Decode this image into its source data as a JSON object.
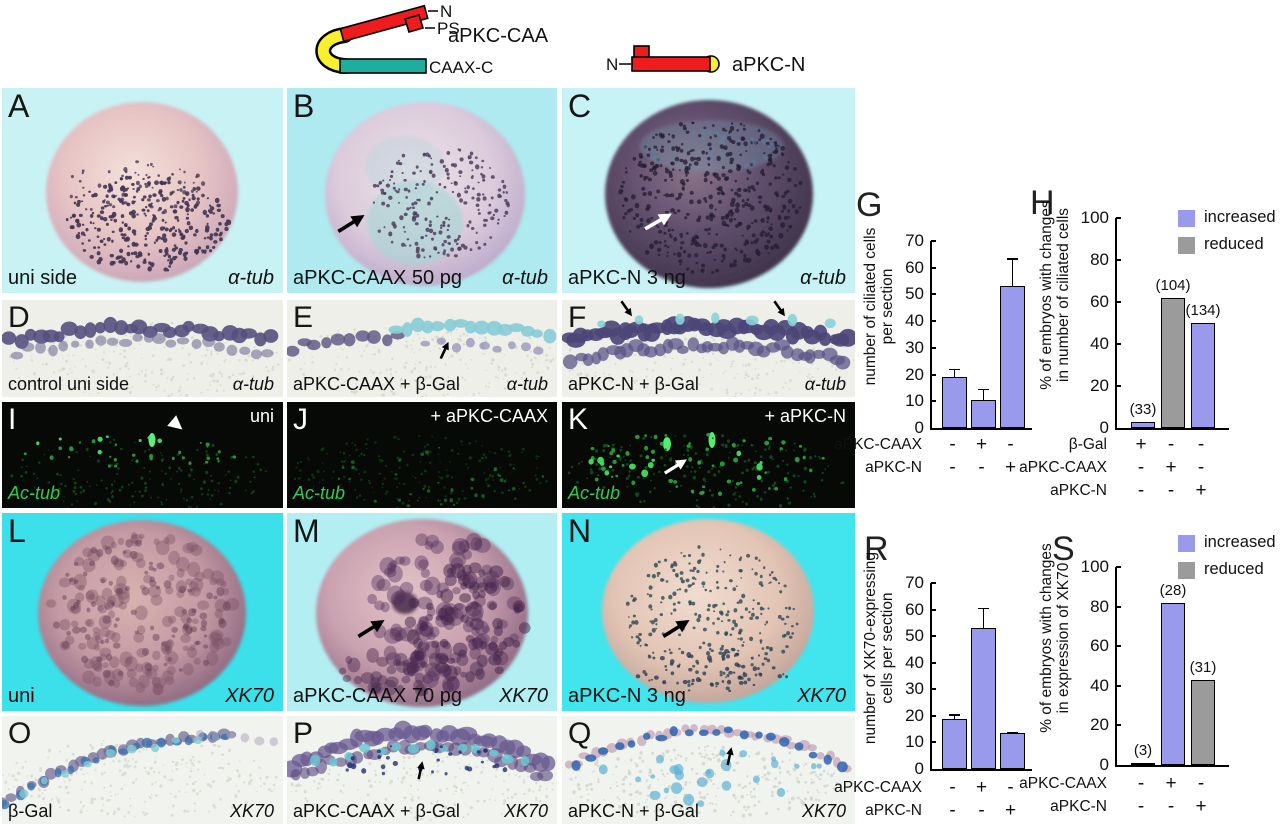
{
  "colors": {
    "increased": "#9a9aec",
    "reduced": "#9b9b9b",
    "bar_border": "#000000",
    "construct_red": "#ee1c1c",
    "construct_yellow": "#f8ef2e",
    "construct_teal": "#1fae9e",
    "fluor_green": "#2fcb50"
  },
  "constructs": {
    "apkc_caax": {
      "name": "aPKC-CAAX",
      "n": "N",
      "ps": "PS",
      "caax_c": "CAAX-C"
    },
    "apkc_n": {
      "name": "aPKC-N",
      "n": "N"
    }
  },
  "panels": [
    {
      "letter": "A",
      "caption_left": "uni side",
      "caption_right": "α-tub"
    },
    {
      "letter": "B",
      "caption_left": "aPKC-CAAX 50 pg",
      "caption_right": "α-tub"
    },
    {
      "letter": "C",
      "caption_left": "aPKC-N 3 ng",
      "caption_right": "α-tub"
    },
    {
      "letter": "D",
      "caption_left": "control uni side",
      "caption_right": "α-tub"
    },
    {
      "letter": "E",
      "caption_left": "aPKC-CAAX + β-Gal",
      "caption_right": "α-tub"
    },
    {
      "letter": "F",
      "caption_left": "aPKC-N + β-Gal",
      "caption_right": "α-tub"
    },
    {
      "letter": "I",
      "caption_top_right": "uni",
      "caption_bottom_left": "Ac-tub"
    },
    {
      "letter": "J",
      "caption_top_right": "+ aPKC-CAAX",
      "caption_bottom_left": "Ac-tub"
    },
    {
      "letter": "K",
      "caption_top_right": "+ aPKC-N",
      "caption_bottom_left": "Ac-tub"
    },
    {
      "letter": "L",
      "caption_left": "uni",
      "caption_right": "XK70"
    },
    {
      "letter": "M",
      "caption_left": "aPKC-CAAX 70 pg",
      "caption_right": "XK70"
    },
    {
      "letter": "N",
      "caption_left": "aPKC-N 3 ng",
      "caption_right": "XK70"
    },
    {
      "letter": "O",
      "caption_left": "β-Gal",
      "caption_right": "XK70"
    },
    {
      "letter": "P",
      "caption_left": "aPKC-CAAX + β-Gal",
      "caption_right": "XK70"
    },
    {
      "letter": "Q",
      "caption_left": "aPKC-N + β-Gal",
      "caption_right": "XK70"
    }
  ],
  "chart_data": [
    {
      "panel_letter": "G",
      "type": "bar",
      "ylabel_lines": [
        "number of ciliated cells",
        "per section"
      ],
      "ylim": [
        0,
        70
      ],
      "yticks": [
        0,
        10,
        20,
        30,
        40,
        50,
        60,
        70
      ],
      "grid": false,
      "bars": [
        {
          "value": 19,
          "error_up": 3.5,
          "color_key": "increased"
        },
        {
          "value": 10.5,
          "error_up": 4.5,
          "color_key": "increased"
        },
        {
          "value": 53,
          "error_up": 11,
          "color_key": "increased"
        }
      ],
      "conditions": [
        {
          "label": "aPKC-CAAX",
          "values": [
            "-",
            "+",
            "-"
          ]
        },
        {
          "label": "aPKC-N",
          "values": [
            "-",
            "-",
            "+"
          ]
        }
      ]
    },
    {
      "panel_letter": "H",
      "type": "bar",
      "ylabel_lines": [
        "% of embryos with changes",
        "in number of ciliated cells"
      ],
      "ylim": [
        0,
        100
      ],
      "yticks": [
        0,
        20,
        40,
        60,
        80,
        100
      ],
      "grid": false,
      "bars": [
        {
          "value": 3,
          "count": "(33)",
          "color_key": "increased"
        },
        {
          "value": 62,
          "count": "(104)",
          "color_key": "reduced"
        },
        {
          "value": 50,
          "count": "(134)",
          "color_key": "increased"
        }
      ],
      "conditions": [
        {
          "label": "β-Gal",
          "values": [
            "+",
            "-",
            "-"
          ]
        },
        {
          "label": "aPKC-CAAX",
          "values": [
            "-",
            "+",
            "-"
          ]
        },
        {
          "label": "aPKC-N",
          "values": [
            "-",
            "-",
            "+"
          ]
        }
      ],
      "legend": [
        {
          "label": "increased",
          "color_key": "increased"
        },
        {
          "label": "reduced",
          "color_key": "reduced"
        }
      ],
      "legend_position": "top-right"
    },
    {
      "panel_letter": "R",
      "type": "bar",
      "ylabel_lines": [
        "number of XK70-expressing",
        "cells per section"
      ],
      "ylim": [
        0,
        70
      ],
      "yticks": [
        0,
        10,
        20,
        30,
        40,
        50,
        60,
        70
      ],
      "grid": false,
      "bars": [
        {
          "value": 19,
          "error_up": 2,
          "color_key": "increased"
        },
        {
          "value": 53,
          "error_up": 8,
          "color_key": "increased"
        },
        {
          "value": 13.5,
          "error_up": 0.8,
          "color_key": "increased"
        }
      ],
      "conditions": [
        {
          "label": "aPKC-CAAX",
          "values": [
            "-",
            "+",
            "-"
          ]
        },
        {
          "label": "aPKC-N",
          "values": [
            "-",
            "-",
            "+"
          ]
        }
      ]
    },
    {
      "panel_letter": "S",
      "type": "bar",
      "ylabel_lines": [
        "% of embryos with changes",
        "in expression of XK70"
      ],
      "ylim": [
        0,
        100
      ],
      "yticks": [
        0,
        20,
        40,
        60,
        80,
        100
      ],
      "grid": false,
      "bars": [
        {
          "value": 1,
          "count": "(3)",
          "color_key": "increased"
        },
        {
          "value": 82,
          "count": "(28)",
          "color_key": "increased"
        },
        {
          "value": 43,
          "count": "(31)",
          "color_key": "reduced"
        }
      ],
      "conditions": [
        {
          "label": "aPKC-CAAX",
          "values": [
            "-",
            "+",
            "-"
          ]
        },
        {
          "label": "aPKC-N",
          "values": [
            "-",
            "-",
            "+"
          ]
        }
      ],
      "legend": [
        {
          "label": "increased",
          "color_key": "increased"
        },
        {
          "label": "reduced",
          "color_key": "reduced"
        }
      ],
      "legend_position": "top-right"
    }
  ]
}
